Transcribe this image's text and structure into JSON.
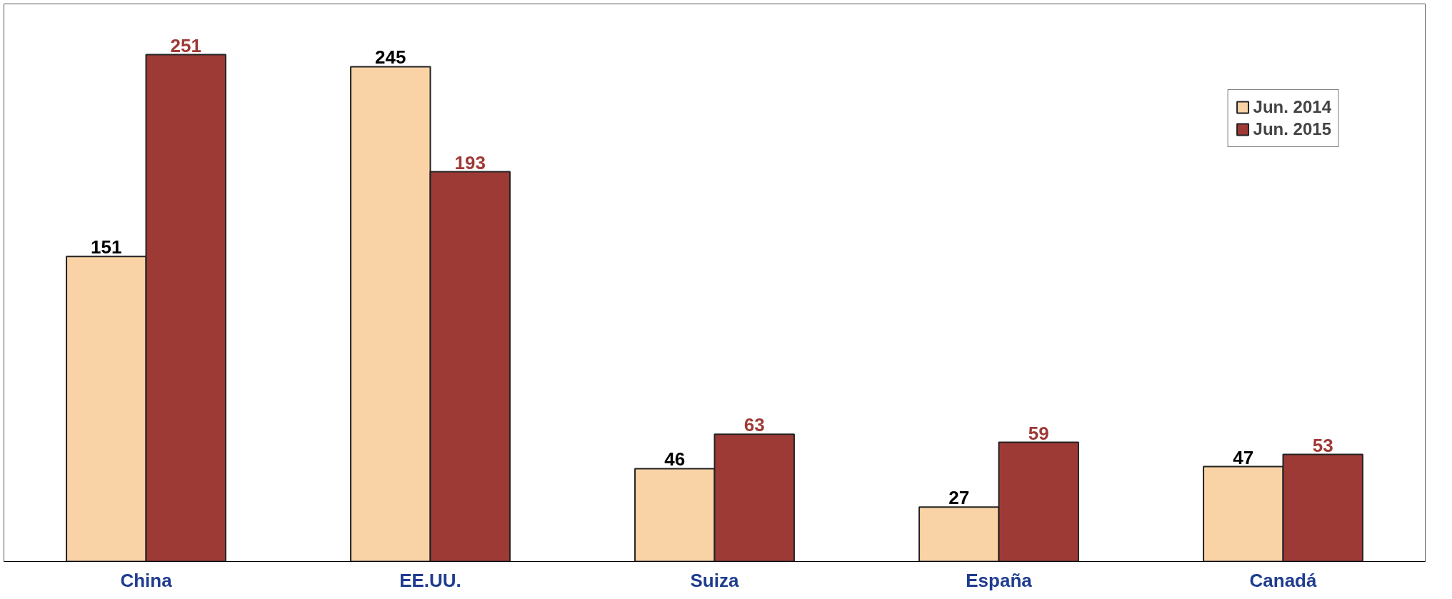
{
  "chart_data": {
    "type": "bar",
    "categories": [
      "China",
      "EE.UU.",
      "Suiza",
      "España",
      "Canadá"
    ],
    "series": [
      {
        "name": "Jun. 2014",
        "color": "#f9d3a6",
        "values": [
          151,
          245,
          46,
          27,
          47
        ]
      },
      {
        "name": "Jun. 2015",
        "color": "#9e3a36",
        "values": [
          251,
          193,
          63,
          59,
          53
        ]
      }
    ],
    "data_labels": true,
    "legend": "top right",
    "grid": false
  }
}
